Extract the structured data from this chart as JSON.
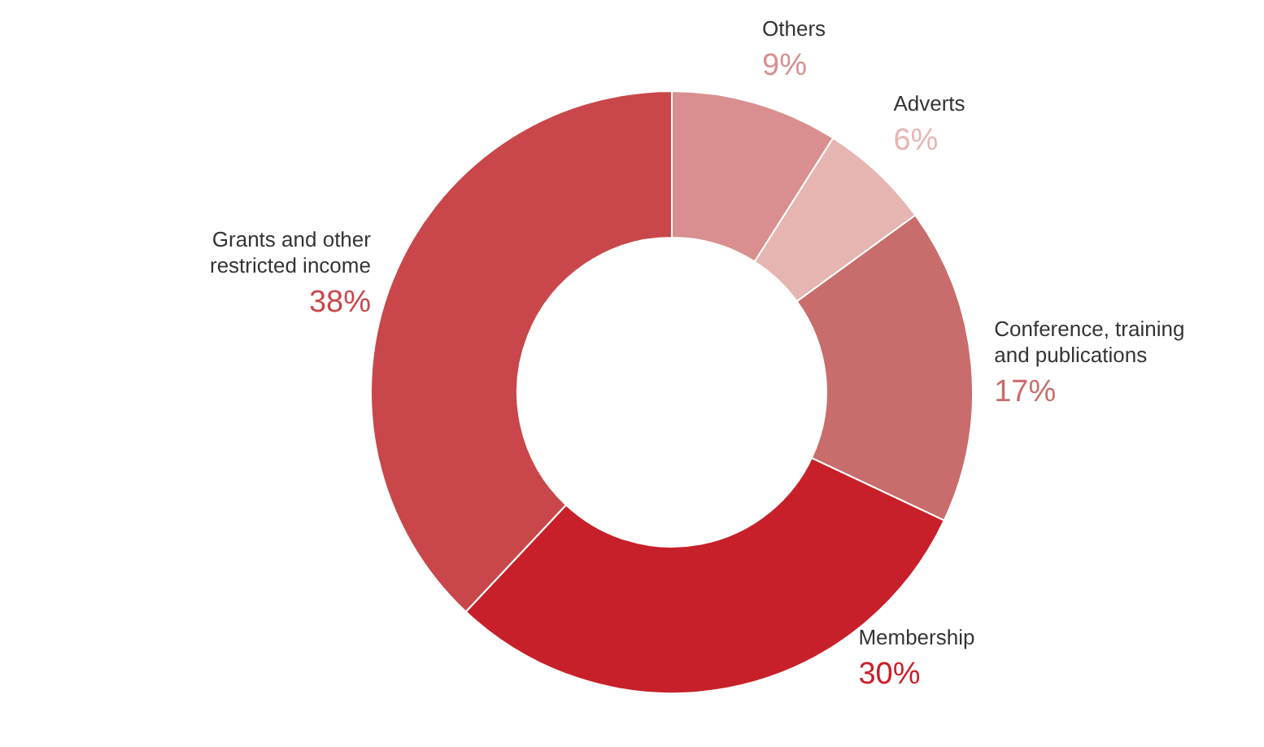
{
  "chart_data": {
    "type": "donut",
    "categories": [
      "Others",
      "Adverts",
      "Conference, training and publications",
      "Membership",
      "Grants and other restricted income"
    ],
    "values": [
      9,
      6,
      17,
      30,
      38
    ],
    "value_labels": [
      "9%",
      "6%",
      "17%",
      "30%",
      "38%"
    ],
    "colors": [
      "#d98f8f",
      "#e6b5b2",
      "#c96c6c",
      "#c8202a",
      "#c9474a"
    ]
  }
}
